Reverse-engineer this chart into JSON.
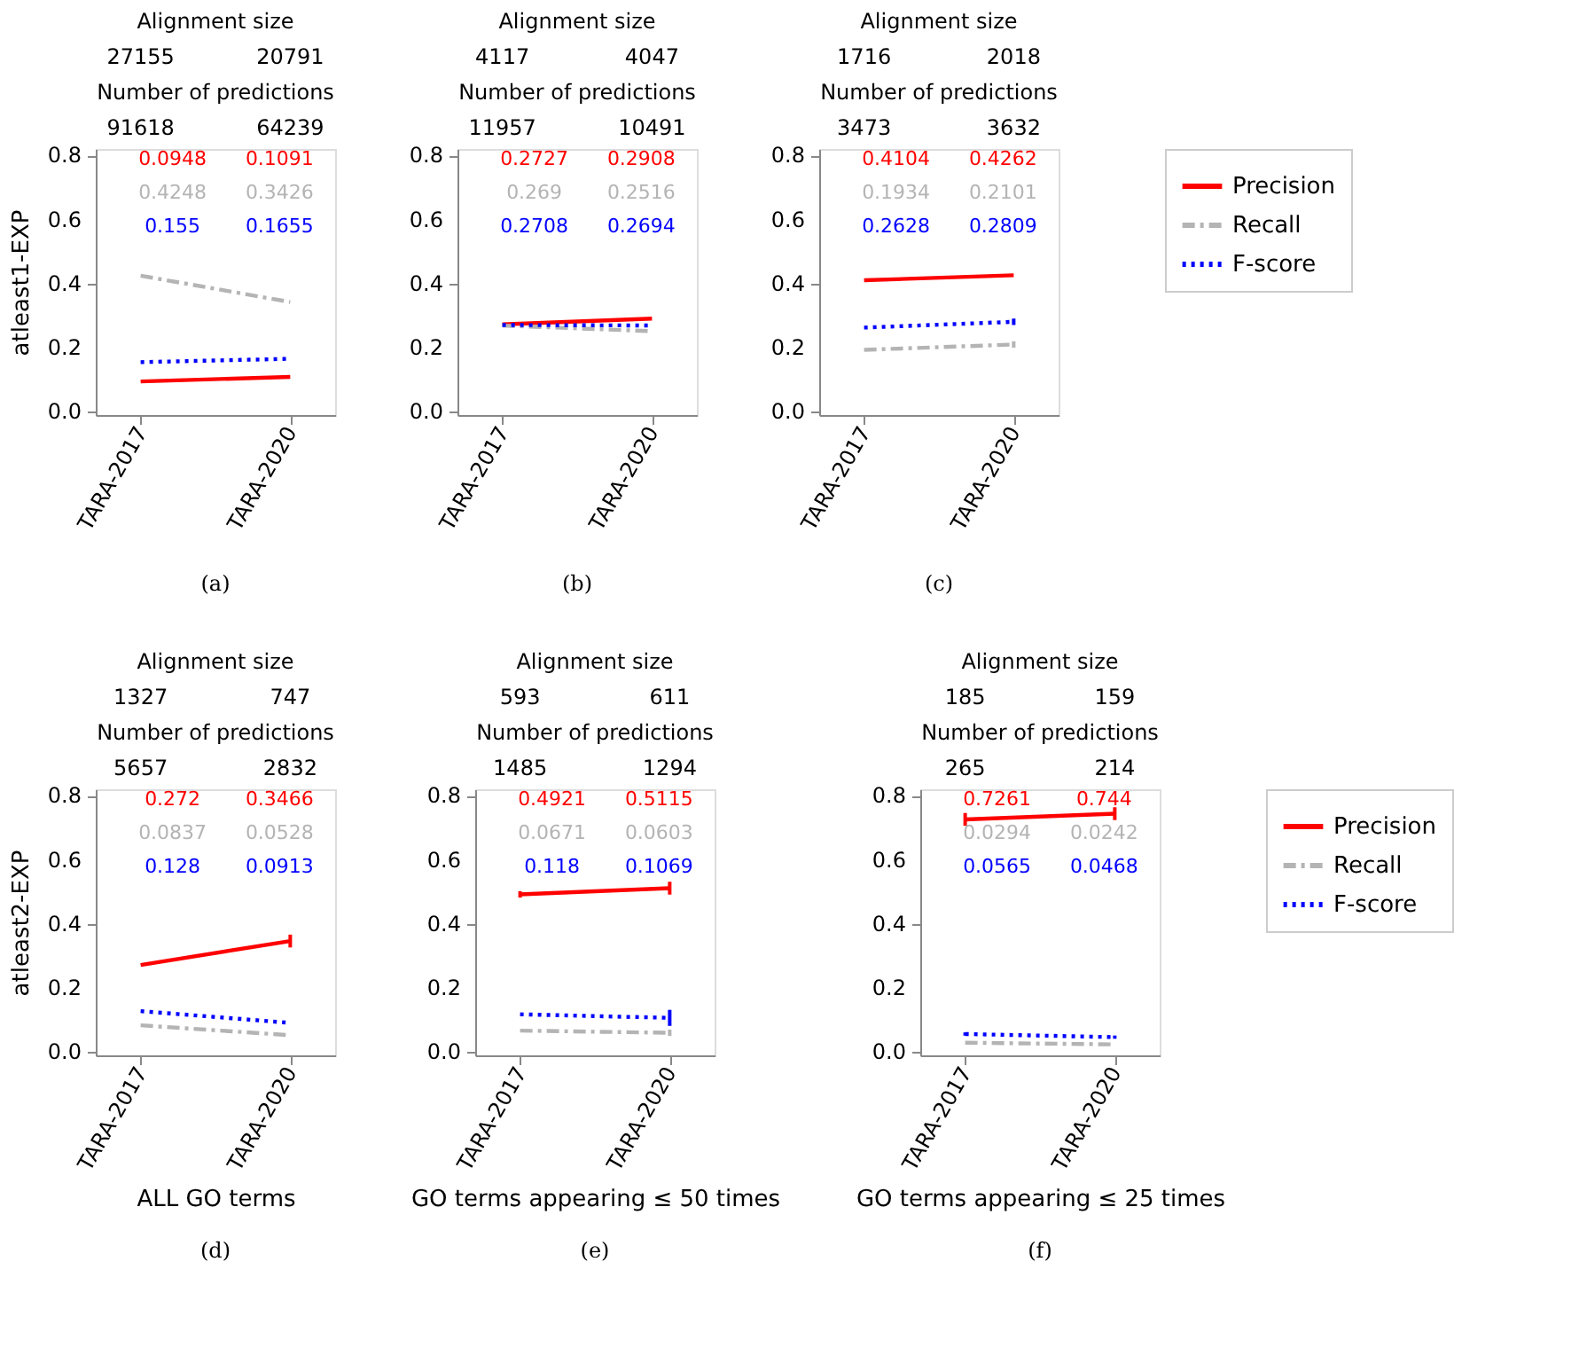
{
  "chart_data": [
    {
      "type": "line",
      "categories": [
        "TARA-2017",
        "TARA-2020"
      ],
      "ylabel": "atleast1-EXP",
      "ylim": [
        -0.01,
        0.82
      ],
      "yticks": [
        {
          "value": 0,
          "label": "0.0"
        },
        {
          "value": 0.2,
          "label": "0.2"
        },
        {
          "value": 0.4,
          "label": "0.4"
        },
        {
          "value": 0.6,
          "label": "0.6"
        },
        {
          "value": 0.8,
          "label": "0.8"
        }
      ],
      "grid": false,
      "legend": "right",
      "series": [
        {
          "color": "#ff0000",
          "line_style": "solid",
          "values": [
            0.0948,
            0.1091
          ]
        },
        {
          "color": "#b4b4b4",
          "line_style": "dashed",
          "values": [
            0.4248,
            0.3426
          ]
        },
        {
          "color": "#0000ff",
          "line_style": "dotted",
          "values": [
            0.155,
            0.1655
          ]
        }
      ],
      "annotations": [
        "Alignment size",
        "27155",
        "20791",
        "Number of predictions",
        "91618",
        "64239",
        "0.0948",
        "0.1091",
        "0.4248",
        "0.3426",
        "0.155",
        "0.1655",
        "(a)"
      ]
    },
    {
      "type": "line",
      "categories": [
        "TARA-2017",
        "TARA-2020"
      ],
      "ylim": [
        -0.01,
        0.82
      ],
      "yticks": [
        {
          "value": 0,
          "label": "0.0"
        },
        {
          "value": 0.2,
          "label": "0.2"
        },
        {
          "value": 0.4,
          "label": "0.4"
        },
        {
          "value": 0.6,
          "label": "0.6"
        },
        {
          "value": 0.8,
          "label": "0.8"
        }
      ],
      "grid": false,
      "legend": "right",
      "series": [
        {
          "color": "#ff0000",
          "line_style": "solid",
          "values": [
            0.2727,
            0.2908
          ]
        },
        {
          "color": "#b4b4b4",
          "line_style": "dashed",
          "values": [
            0.269,
            0.2516
          ]
        },
        {
          "color": "#0000ff",
          "line_style": "dotted",
          "values": [
            0.2708,
            0.2694
          ]
        }
      ],
      "annotations": [
        "Alignment size",
        "4117",
        "4047",
        "Number of predictions",
        "11957",
        "10491",
        "0.2727",
        "0.2908",
        "0.269",
        "0.2516",
        "0.2708",
        "0.2694",
        "(b)"
      ]
    },
    {
      "type": "line",
      "categories": [
        "TARA-2017",
        "TARA-2020"
      ],
      "ylim": [
        -0.01,
        0.82
      ],
      "yticks": [
        {
          "value": 0,
          "label": "0.0"
        },
        {
          "value": 0.2,
          "label": "0.2"
        },
        {
          "value": 0.4,
          "label": "0.4"
        },
        {
          "value": 0.6,
          "label": "0.6"
        },
        {
          "value": 0.8,
          "label": "0.8"
        }
      ],
      "grid": false,
      "legend": "right",
      "series": [
        {
          "name": "Precision",
          "color": "#ff0000",
          "line_style": "solid",
          "values": [
            0.4104,
            0.4262
          ]
        },
        {
          "name": "Recall",
          "color": "#b4b4b4",
          "line_style": "dashed",
          "values": [
            0.1934,
            0.2101
          ],
          "errors": [
            null,
            0.01
          ]
        },
        {
          "name": "F-score",
          "color": "#0000ff",
          "line_style": "dotted",
          "values": [
            0.2628,
            0.2809
          ],
          "errors": [
            null,
            0.01
          ]
        }
      ],
      "annotations": [
        "Alignment size",
        "1716",
        "2018",
        "Number of predictions",
        "3473",
        "3632",
        "0.4104",
        "0.4262",
        "0.1934",
        "0.2101",
        "0.2628",
        "0.2809",
        "(c)"
      ]
    },
    {
      "type": "line",
      "categories": [
        "TARA-2017",
        "TARA-2020"
      ],
      "ylabel": "atleast2-EXP",
      "xlabel": "ALL GO terms",
      "ylim": [
        -0.01,
        0.82
      ],
      "yticks": [
        {
          "value": 0,
          "label": "0.0"
        },
        {
          "value": 0.2,
          "label": "0.2"
        },
        {
          "value": 0.4,
          "label": "0.4"
        },
        {
          "value": 0.6,
          "label": "0.6"
        },
        {
          "value": 0.8,
          "label": "0.8"
        }
      ],
      "grid": false,
      "legend": "right",
      "series": [
        {
          "color": "#ff0000",
          "line_style": "solid",
          "values": [
            0.272,
            0.3466
          ],
          "errors": [
            null,
            0.02
          ]
        },
        {
          "color": "#b4b4b4",
          "line_style": "dashed",
          "values": [
            0.0837,
            0.0528
          ]
        },
        {
          "color": "#0000ff",
          "line_style": "dotted",
          "values": [
            0.128,
            0.0913
          ]
        }
      ],
      "annotations": [
        "Alignment size",
        "1327",
        "747",
        "Number of predictions",
        "5657",
        "2832",
        "0.272",
        "0.3466",
        "0.0837",
        "0.0528",
        "0.128",
        "0.0913",
        "(d)"
      ]
    },
    {
      "type": "line",
      "categories": [
        "TARA-2017",
        "TARA-2020"
      ],
      "xlabel": "GO terms appearing ≤ 50 times",
      "ylim": [
        -0.01,
        0.82
      ],
      "yticks": [
        {
          "value": 0,
          "label": "0.0"
        },
        {
          "value": 0.2,
          "label": "0.2"
        },
        {
          "value": 0.4,
          "label": "0.4"
        },
        {
          "value": 0.6,
          "label": "0.6"
        },
        {
          "value": 0.8,
          "label": "0.8"
        }
      ],
      "grid": false,
      "legend": "right",
      "series": [
        {
          "color": "#ff0000",
          "line_style": "solid",
          "values": [
            0.4921,
            0.5115
          ],
          "errors": [
            0.01,
            0.02
          ]
        },
        {
          "color": "#b4b4b4",
          "line_style": "dashed",
          "values": [
            0.0671,
            0.0603
          ],
          "errors": [
            null,
            0.01
          ]
        },
        {
          "color": "#0000ff",
          "line_style": "dotted",
          "values": [
            0.118,
            0.1069
          ],
          "errors": [
            null,
            0.025
          ]
        }
      ],
      "annotations": [
        "Alignment size",
        "593",
        "611",
        "Number of predictions",
        "1485",
        "1294",
        "0.4921",
        "0.5115",
        "0.0671",
        "0.0603",
        "0.118",
        "0.1069",
        "(e)"
      ]
    },
    {
      "type": "line",
      "categories": [
        "TARA-2017",
        "TARA-2020"
      ],
      "xlabel": "GO terms appearing ≤ 25 times",
      "ylim": [
        -0.01,
        0.82
      ],
      "yticks": [
        {
          "value": 0,
          "label": "0.0"
        },
        {
          "value": 0.2,
          "label": "0.2"
        },
        {
          "value": 0.4,
          "label": "0.4"
        },
        {
          "value": 0.6,
          "label": "0.6"
        },
        {
          "value": 0.8,
          "label": "0.8"
        }
      ],
      "grid": false,
      "legend": "right",
      "series": [
        {
          "name": "Precision",
          "color": "#ff0000",
          "line_style": "solid",
          "values": [
            0.7261,
            0.744
          ],
          "errors": [
            0.02,
            0.02
          ]
        },
        {
          "name": "Recall",
          "color": "#b4b4b4",
          "line_style": "dashed",
          "values": [
            0.0294,
            0.0242
          ]
        },
        {
          "name": "F-score",
          "color": "#0000ff",
          "line_style": "dotted",
          "values": [
            0.0565,
            0.0468
          ],
          "errors": [
            0.005,
            0.005
          ]
        }
      ],
      "annotations": [
        "Alignment size",
        "185",
        "159",
        "Number of predictions",
        "265",
        "214",
        "0.7261",
        "0.744",
        "0.0294",
        "0.0242",
        "0.0565",
        "0.0468",
        "(f)"
      ]
    }
  ]
}
